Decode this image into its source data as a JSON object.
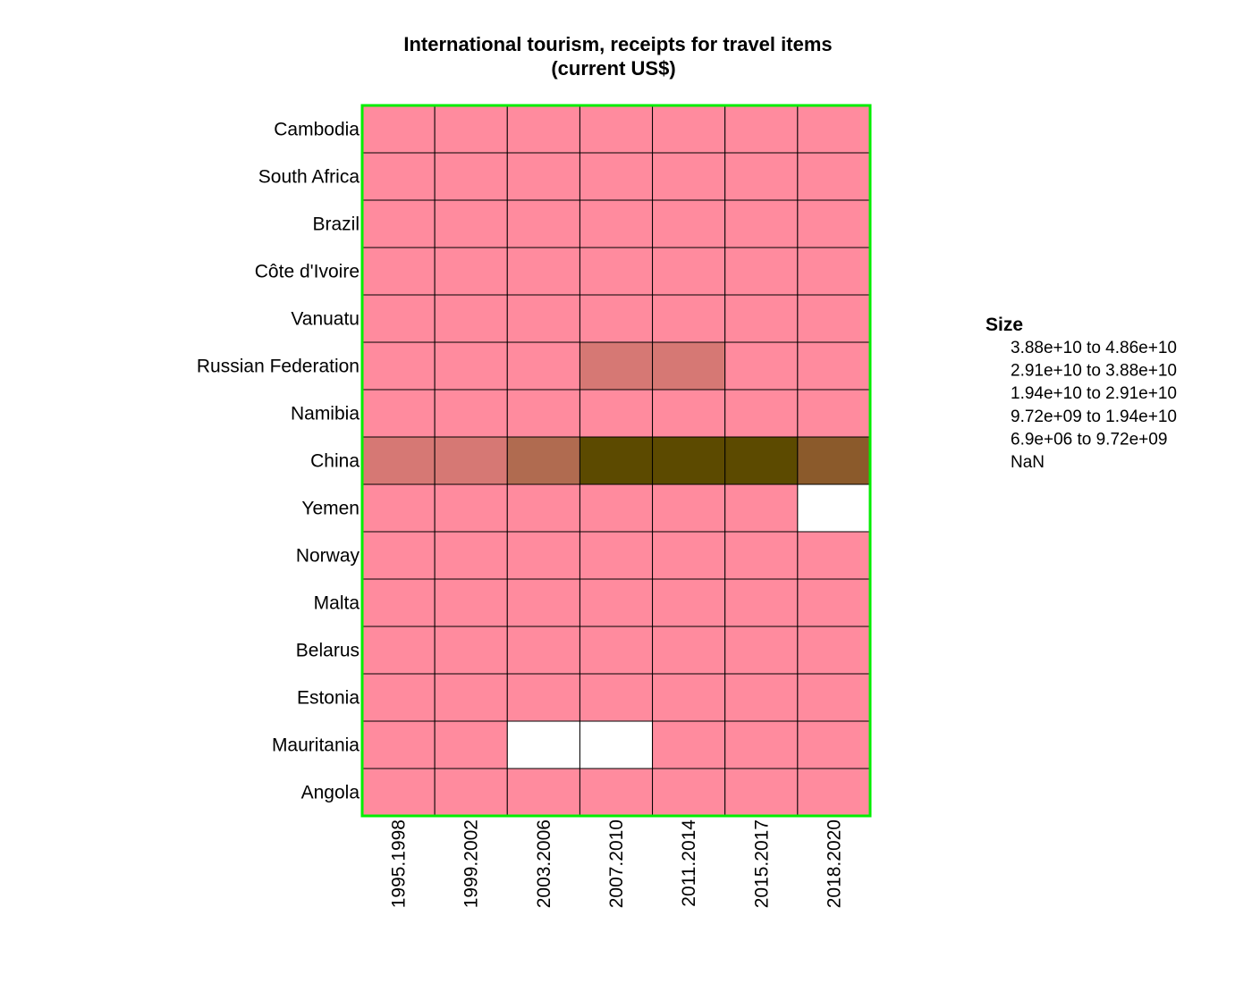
{
  "chart_data": {
    "type": "heatmap",
    "title": "International tourism, receipts for travel items",
    "subtitle": "(current US$)",
    "rows": [
      "Cambodia",
      "South Africa",
      "Brazil",
      "Côte d'Ivoire",
      "Vanuatu",
      "Russian Federation",
      "Namibia",
      "China",
      "Yemen",
      "Norway",
      "Malta",
      "Belarus",
      "Estonia",
      "Mauritania",
      "Angola"
    ],
    "columns": [
      "1995.1998",
      "1999.2002",
      "2003.2006",
      "2007.2010",
      "2011.2014",
      "2015.2017",
      "2018.2020"
    ],
    "legend": {
      "title": "Size",
      "bins": [
        {
          "label": "3.88e+10  to  4.86e+10",
          "color": "#5c4a00"
        },
        {
          "label": "2.91e+10  to  3.88e+10",
          "color": "#8b5a2b"
        },
        {
          "label": "1.94e+10  to  2.91e+10",
          "color": "#b06b50"
        },
        {
          "label": "9.72e+09  to  1.94e+10",
          "color": "#d67874"
        },
        {
          "label": "6.9e+06  to  9.72e+09",
          "color": "#ff8b9e"
        },
        {
          "label": "NaN",
          "color": "#ffffff"
        }
      ]
    },
    "cells": [
      [
        4,
        4,
        4,
        4,
        4,
        4,
        4
      ],
      [
        4,
        4,
        4,
        4,
        4,
        4,
        4
      ],
      [
        4,
        4,
        4,
        4,
        4,
        4,
        4
      ],
      [
        4,
        4,
        4,
        4,
        4,
        4,
        4
      ],
      [
        4,
        4,
        4,
        4,
        4,
        4,
        4
      ],
      [
        4,
        4,
        4,
        3,
        3,
        4,
        4
      ],
      [
        4,
        4,
        4,
        4,
        4,
        4,
        4
      ],
      [
        3,
        3,
        2,
        0,
        0,
        0,
        1
      ],
      [
        4,
        4,
        4,
        4,
        4,
        4,
        5
      ],
      [
        4,
        4,
        4,
        4,
        4,
        4,
        4
      ],
      [
        4,
        4,
        4,
        4,
        4,
        4,
        4
      ],
      [
        4,
        4,
        4,
        4,
        4,
        4,
        4
      ],
      [
        4,
        4,
        4,
        4,
        4,
        4,
        4
      ],
      [
        4,
        4,
        5,
        5,
        4,
        4,
        4
      ],
      [
        4,
        4,
        4,
        4,
        4,
        4,
        4
      ]
    ],
    "frame_color": "#00ee00",
    "grid_line_color": "#000000"
  }
}
